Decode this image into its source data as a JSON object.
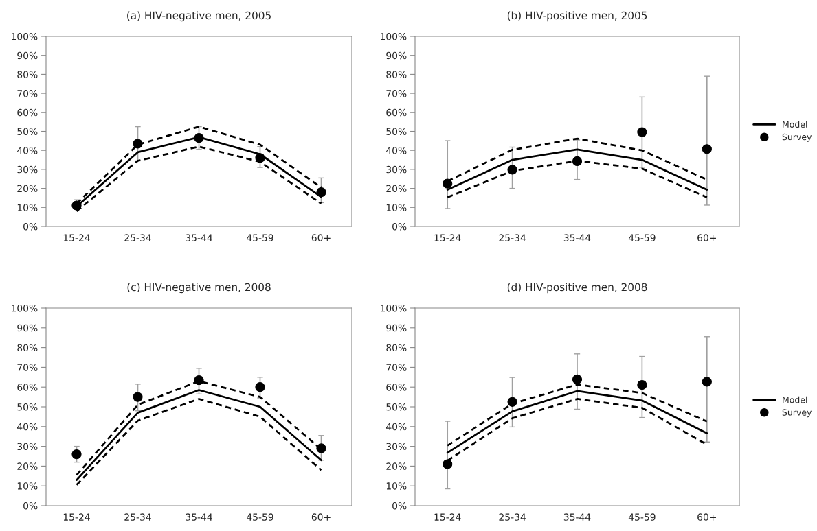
{
  "chart_data": [
    {
      "type": "line",
      "title": "(a) HIV-negative men, 2005",
      "categories": [
        "15-24",
        "25-34",
        "35-44",
        "45-59",
        "60+"
      ],
      "ylim": [
        0,
        100
      ],
      "yticks": [
        {
          "value": 0,
          "label": "0%"
        },
        {
          "value": 10,
          "label": "10%"
        },
        {
          "value": 20,
          "label": "20%"
        },
        {
          "value": 30,
          "label": "30%"
        },
        {
          "value": 40,
          "label": "40%"
        },
        {
          "value": 50,
          "label": "50%"
        },
        {
          "value": 60,
          "label": "60%"
        },
        {
          "value": 70,
          "label": "70%"
        },
        {
          "value": 80,
          "label": "80%"
        },
        {
          "value": 90,
          "label": "90%"
        },
        {
          "value": 100,
          "label": "100%"
        }
      ],
      "grid": false,
      "legend": false,
      "series": [
        {
          "color": "#000000",
          "line_style": "solid",
          "values": [
            10.5,
            39,
            47,
            38,
            15.5
          ]
        },
        {
          "color": "#000000",
          "line_style": "dashed",
          "values": [
            12,
            43,
            52.5,
            43,
            20.5
          ]
        },
        {
          "color": "#000000",
          "line_style": "dashed",
          "values": [
            8,
            34.5,
            42,
            34,
            12
          ]
        },
        {
          "type": "scatter",
          "color": "#000000",
          "marker": "circle",
          "values": [
            11,
            43.5,
            46.5,
            36,
            18
          ],
          "errors": [
            [
              9.5,
              14
            ],
            [
              34.5,
              52.5
            ],
            [
              40.5,
              52.5
            ],
            [
              31,
              42
            ],
            [
              12.5,
              25.5
            ]
          ]
        }
      ]
    },
    {
      "type": "line",
      "title": "(b) HIV-positive men, 2005",
      "categories": [
        "15-24",
        "25-34",
        "35-44",
        "45-59",
        "60+"
      ],
      "ylim": [
        0,
        100
      ],
      "yticks": [
        {
          "value": 0,
          "label": "0%"
        },
        {
          "value": 10,
          "label": "10%"
        },
        {
          "value": 20,
          "label": "20%"
        },
        {
          "value": 30,
          "label": "30%"
        },
        {
          "value": 40,
          "label": "40%"
        },
        {
          "value": 50,
          "label": "50%"
        },
        {
          "value": 60,
          "label": "60%"
        },
        {
          "value": 70,
          "label": "70%"
        },
        {
          "value": 80,
          "label": "80%"
        },
        {
          "value": 90,
          "label": "90%"
        },
        {
          "value": 100,
          "label": "100%"
        }
      ],
      "grid": false,
      "legend": "right",
      "series": [
        {
          "name": "Model",
          "color": "#000000",
          "line_style": "solid",
          "values": [
            19.3,
            35,
            40.5,
            35,
            19.3
          ]
        },
        {
          "color": "#000000",
          "line_style": "dashed",
          "values": [
            23.8,
            40.3,
            46.2,
            40,
            24.6
          ]
        },
        {
          "color": "#000000",
          "line_style": "dashed",
          "values": [
            15.3,
            29.2,
            34.5,
            30.4,
            15.3
          ]
        },
        {
          "type": "scatter",
          "name": "Survey",
          "color": "#000000",
          "marker": "circle",
          "values": [
            22.5,
            29.8,
            34.3,
            49.6,
            40.7
          ],
          "errors": [
            [
              9.4,
              45.1
            ],
            [
              20,
              41.7
            ],
            [
              24.7,
              45.5
            ],
            [
              31.1,
              68.1
            ],
            [
              11.2,
              79
            ]
          ]
        }
      ]
    },
    {
      "type": "line",
      "title": "(c) HIV-negative men, 2008",
      "categories": [
        "15-24",
        "25-34",
        "35-44",
        "45-59",
        "60+"
      ],
      "ylim": [
        0,
        100
      ],
      "yticks": [
        {
          "value": 0,
          "label": "0%"
        },
        {
          "value": 10,
          "label": "10%"
        },
        {
          "value": 20,
          "label": "20%"
        },
        {
          "value": 30,
          "label": "30%"
        },
        {
          "value": 40,
          "label": "40%"
        },
        {
          "value": 50,
          "label": "50%"
        },
        {
          "value": 60,
          "label": "60%"
        },
        {
          "value": 70,
          "label": "70%"
        },
        {
          "value": 80,
          "label": "80%"
        },
        {
          "value": 90,
          "label": "90%"
        },
        {
          "value": 100,
          "label": "100%"
        }
      ],
      "grid": false,
      "legend": false,
      "series": [
        {
          "color": "#000000",
          "line_style": "solid",
          "values": [
            13,
            47,
            58.5,
            50,
            23
          ]
        },
        {
          "color": "#000000",
          "line_style": "dashed",
          "values": [
            15.5,
            51,
            63,
            55,
            28.5
          ]
        },
        {
          "color": "#000000",
          "line_style": "dashed",
          "values": [
            10.5,
            43,
            54,
            45,
            18
          ]
        },
        {
          "type": "scatter",
          "color": "#000000",
          "marker": "circle",
          "values": [
            26,
            55,
            63.5,
            60,
            29
          ],
          "errors": [
            [
              22,
              30
            ],
            [
              48,
              61.5
            ],
            [
              56.5,
              69.5
            ],
            [
              54.5,
              65
            ],
            [
              23,
              35.5
            ]
          ]
        }
      ]
    },
    {
      "type": "line",
      "title": "(d) HIV-positive men, 2008",
      "categories": [
        "15-24",
        "25-34",
        "35-44",
        "45-59",
        "60+"
      ],
      "ylim": [
        0,
        100
      ],
      "yticks": [
        {
          "value": 0,
          "label": "0%"
        },
        {
          "value": 10,
          "label": "10%"
        },
        {
          "value": 20,
          "label": "20%"
        },
        {
          "value": 30,
          "label": "30%"
        },
        {
          "value": 40,
          "label": "40%"
        },
        {
          "value": 50,
          "label": "50%"
        },
        {
          "value": 60,
          "label": "60%"
        },
        {
          "value": 70,
          "label": "70%"
        },
        {
          "value": 80,
          "label": "80%"
        },
        {
          "value": 90,
          "label": "90%"
        },
        {
          "value": 100,
          "label": "100%"
        }
      ],
      "grid": false,
      "legend": "right",
      "series": [
        {
          "name": "Model",
          "color": "#000000",
          "line_style": "solid",
          "values": [
            26.8,
            47.7,
            58,
            53.2,
            36.6
          ]
        },
        {
          "color": "#000000",
          "line_style": "dashed",
          "values": [
            30.4,
            51.6,
            61.3,
            57,
            42.6
          ]
        },
        {
          "color": "#000000",
          "line_style": "dashed",
          "values": [
            22.8,
            44.2,
            54,
            49.5,
            30.9
          ]
        },
        {
          "type": "scatter",
          "name": "Survey",
          "color": "#000000",
          "marker": "circle",
          "values": [
            21,
            52.5,
            63.9,
            61.1,
            62.7
          ],
          "errors": [
            [
              8.5,
              42.7
            ],
            [
              39.8,
              64.9
            ],
            [
              48.8,
              76.8
            ],
            [
              44.6,
              75.5
            ],
            [
              32.2,
              85.5
            ]
          ]
        }
      ]
    }
  ]
}
